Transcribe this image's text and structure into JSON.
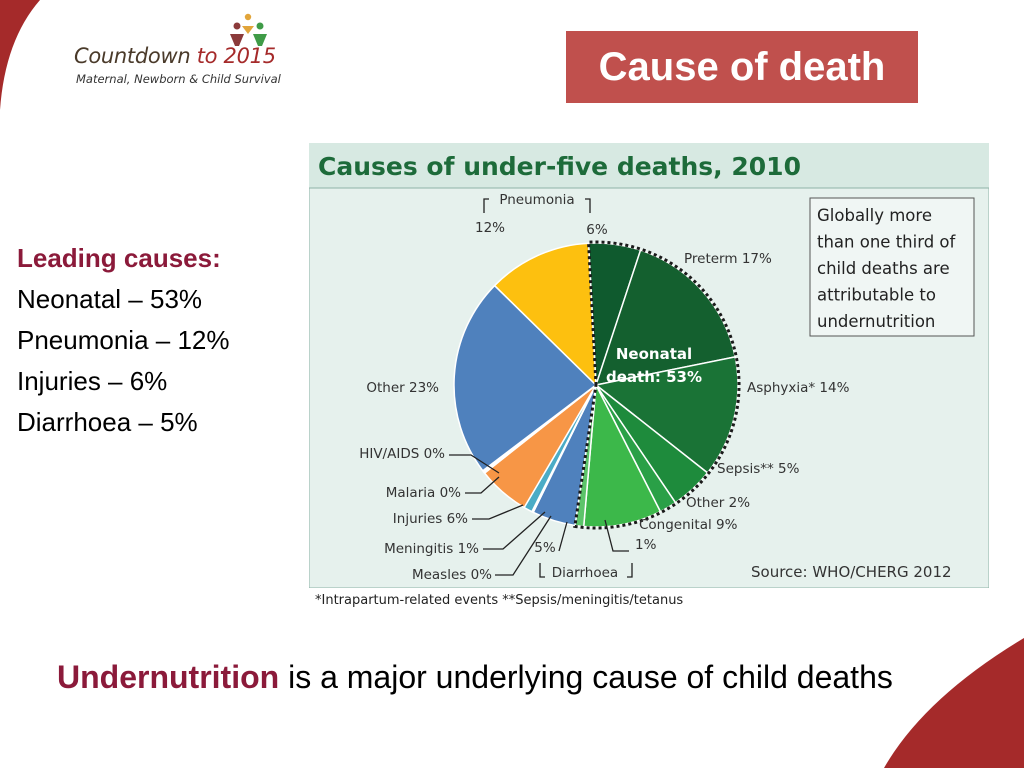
{
  "logo": {
    "title_main": "Countdown ",
    "title_accent": "to 2015",
    "subtitle": "Maternal, Newborn & Child Survival"
  },
  "header": {
    "title": "Cause of death"
  },
  "leading": {
    "heading": "Leading causes:",
    "items": [
      "Neonatal – 53%",
      "Pneumonia – 12%",
      "Injuries – 6%",
      "Diarrhoea – 5%"
    ]
  },
  "bottom": {
    "highlight": "Undernutrition",
    "rest": " is a major underlying cause of child deaths"
  },
  "footnote": "*Intrapartum-related events  **Sepsis/meningitis/tetanus",
  "colors": {
    "title_bg": "#c0504d",
    "chart_frame_bg": "#e6f1ed",
    "title_text": "#1d6b3a",
    "dark_green": "#0f5a2e",
    "green": "#1e8b3c",
    "light_green": "#3cb84a",
    "blue": "#4f81bd",
    "yellow": "#fdc00f",
    "orange": "#f79646",
    "light_blue": "#4bacc6"
  },
  "chart_data": {
    "type": "pie",
    "title": "Causes of under-five deaths, 2010",
    "annotation": "Globally more than one third of child deaths are attributable to undernutrition",
    "source": "Source: WHO/CHERG 2012",
    "neonatal_label": "Neonatal death: 53%",
    "neonatal_label_lines": [
      "Neonatal",
      "death: 53%"
    ],
    "bracket_labels": {
      "pneumonia": "Pneumonia",
      "diarrhoea": "Diarrhoea"
    },
    "slices": [
      {
        "name": "Neonatal pneumonia",
        "value": 6,
        "label": "6%",
        "group": "neonatal",
        "color": "#0f5a2e"
      },
      {
        "name": "Preterm",
        "value": 17,
        "label": "Preterm 17%",
        "group": "neonatal",
        "color": "#14602f"
      },
      {
        "name": "Asphyxia",
        "value": 14,
        "label": "Asphyxia* 14%",
        "group": "neonatal",
        "color": "#1a7336"
      },
      {
        "name": "Sepsis",
        "value": 5,
        "label": "Sepsis** 5%",
        "group": "neonatal",
        "color": "#1e8b3c"
      },
      {
        "name": "Neonatal other",
        "value": 2,
        "label": "Other 2%",
        "group": "neonatal",
        "color": "#2aa047"
      },
      {
        "name": "Congenital",
        "value": 9,
        "label": "Congenital 9%",
        "group": "neonatal",
        "color": "#3cb84a"
      },
      {
        "name": "Neonatal diarrhoea",
        "value": 1,
        "label": "1%",
        "group": "neonatal",
        "color": "#5cc46a"
      },
      {
        "name": "Diarrhoea",
        "value": 5,
        "label": "5%",
        "group": "postneonatal",
        "color": "#4f81bd"
      },
      {
        "name": "Measles",
        "value": 0,
        "label": "Measles 0%",
        "group": "postneonatal",
        "color": "#2c4d78"
      },
      {
        "name": "Meningitis",
        "value": 1,
        "label": "Meningitis 1%",
        "group": "postneonatal",
        "color": "#4bacc6"
      },
      {
        "name": "Injuries",
        "value": 6,
        "label": "Injuries 6%",
        "group": "postneonatal",
        "color": "#f79646"
      },
      {
        "name": "Malaria",
        "value": 0,
        "label": "Malaria 0%",
        "group": "postneonatal",
        "color": "#8064a2"
      },
      {
        "name": "HIV/AIDS",
        "value": 0,
        "label": "HIV/AIDS 0%",
        "group": "postneonatal",
        "color": "#9bbb59"
      },
      {
        "name": "Other",
        "value": 23,
        "label": "Other 23%",
        "group": "postneonatal",
        "color": "#4f81bd"
      },
      {
        "name": "Pneumonia",
        "value": 12,
        "label": "12%",
        "group": "postneonatal",
        "color": "#fdc00f"
      }
    ]
  }
}
